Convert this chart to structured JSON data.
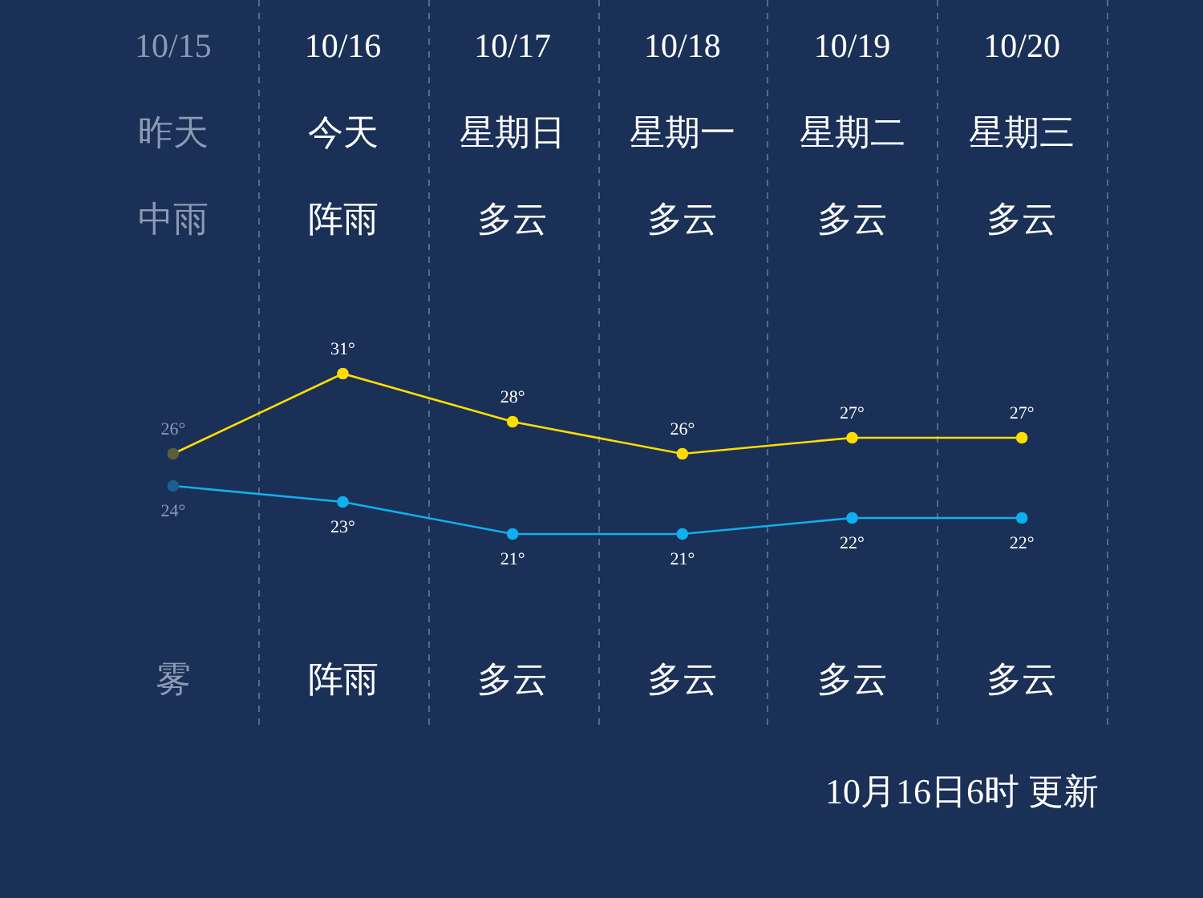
{
  "chart_data": {
    "type": "line",
    "categories": [
      "10/15",
      "10/16",
      "10/17",
      "10/18",
      "10/19",
      "10/20"
    ],
    "series": [
      {
        "color": "#ffdd00",
        "colors": [
          "#5b5e3c",
          "#ffdd00",
          "#ffdd00",
          "#ffdd00",
          "#ffdd00",
          "#ffdd00"
        ],
        "values": [
          26,
          31,
          28,
          26,
          27,
          27
        ],
        "value_labels": [
          "26°",
          "31°",
          "28°",
          "26°",
          "27°",
          "27°"
        ]
      },
      {
        "color": "#0fb0ee",
        "values": [
          24,
          23,
          21,
          21,
          22,
          22
        ],
        "colors": [
          "#1a5f90",
          "#0fb0ee",
          "#0fb0ee",
          "#0fb0ee",
          "#0fb0ee",
          "#0fb0ee"
        ],
        "value_labels": [
          "24°",
          "23°",
          "21°",
          "21°",
          "22°",
          "22°"
        ]
      }
    ],
    "tick_labels": false,
    "grid": "x",
    "marker": "circle",
    "line_style": "solid",
    "legend": false,
    "annotations": [
      "昨天",
      "今天",
      "星期日",
      "星期一",
      "星期二",
      "星期三",
      "中雨",
      "阵雨",
      "多云",
      "多云",
      "多云",
      "多云",
      "雾",
      "阵雨",
      "多云",
      "多云",
      "多云",
      "多云",
      "10月16日6时 更新"
    ]
  }
}
